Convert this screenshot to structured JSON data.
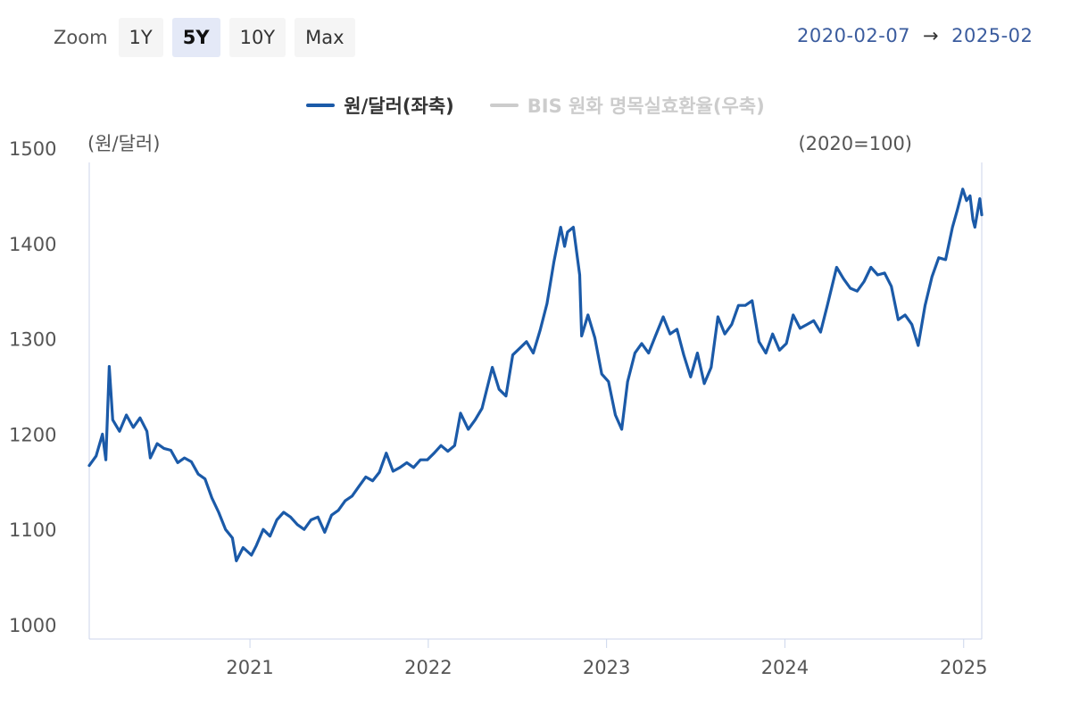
{
  "toolbar": {
    "zoom_label": "Zoom",
    "buttons": [
      "1Y",
      "5Y",
      "10Y",
      "Max"
    ],
    "active": "5Y"
  },
  "range": {
    "from": "2020-02-07",
    "arrow": "→",
    "to": "2025-02"
  },
  "colors": {
    "series": "#1b5aa8",
    "inactive": "#cccccc",
    "axis": "#ccd6eb",
    "grid": "#e6e6e6"
  },
  "chart_data": {
    "type": "line",
    "left_axis_unit": "(원/달러)",
    "right_axis_unit": "(2020=100)",
    "ylim": [
      1000,
      1500
    ],
    "y_ticks": [
      1000,
      1100,
      1200,
      1300,
      1400,
      1500
    ],
    "x_ticks": [
      "2021",
      "2022",
      "2023",
      "2024",
      "2025"
    ],
    "legend_position": "top-center",
    "series": [
      {
        "name": "원/달러(좌축)",
        "visible": true,
        "points": [
          [
            "2020-02-07",
            1182
          ],
          [
            "2020-02-21",
            1192
          ],
          [
            "2020-03-05",
            1215
          ],
          [
            "2020-03-12",
            1188
          ],
          [
            "2020-03-19",
            1286
          ],
          [
            "2020-03-26",
            1230
          ],
          [
            "2020-04-09",
            1218
          ],
          [
            "2020-04-23",
            1235
          ],
          [
            "2020-05-07",
            1222
          ],
          [
            "2020-05-21",
            1232
          ],
          [
            "2020-06-04",
            1218
          ],
          [
            "2020-06-11",
            1190
          ],
          [
            "2020-06-25",
            1205
          ],
          [
            "2020-07-09",
            1200
          ],
          [
            "2020-07-23",
            1198
          ],
          [
            "2020-08-06",
            1185
          ],
          [
            "2020-08-20",
            1190
          ],
          [
            "2020-09-03",
            1186
          ],
          [
            "2020-09-17",
            1173
          ],
          [
            "2020-10-01",
            1168
          ],
          [
            "2020-10-15",
            1148
          ],
          [
            "2020-10-29",
            1133
          ],
          [
            "2020-11-12",
            1115
          ],
          [
            "2020-11-26",
            1106
          ],
          [
            "2020-12-04",
            1082
          ],
          [
            "2020-12-18",
            1096
          ],
          [
            "2021-01-04",
            1088
          ],
          [
            "2021-01-14",
            1098
          ],
          [
            "2021-01-28",
            1115
          ],
          [
            "2021-02-11",
            1108
          ],
          [
            "2021-02-25",
            1125
          ],
          [
            "2021-03-11",
            1133
          ],
          [
            "2021-03-25",
            1128
          ],
          [
            "2021-04-08",
            1120
          ],
          [
            "2021-04-22",
            1115
          ],
          [
            "2021-05-06",
            1125
          ],
          [
            "2021-05-20",
            1128
          ],
          [
            "2021-06-03",
            1112
          ],
          [
            "2021-06-17",
            1130
          ],
          [
            "2021-07-01",
            1135
          ],
          [
            "2021-07-15",
            1145
          ],
          [
            "2021-07-29",
            1150
          ],
          [
            "2021-08-12",
            1160
          ],
          [
            "2021-08-26",
            1170
          ],
          [
            "2021-09-09",
            1166
          ],
          [
            "2021-09-23",
            1175
          ],
          [
            "2021-10-07",
            1195
          ],
          [
            "2021-10-21",
            1176
          ],
          [
            "2021-11-04",
            1180
          ],
          [
            "2021-11-18",
            1185
          ],
          [
            "2021-12-02",
            1180
          ],
          [
            "2021-12-16",
            1188
          ],
          [
            "2021-12-30",
            1188
          ],
          [
            "2022-01-13",
            1195
          ],
          [
            "2022-01-27",
            1203
          ],
          [
            "2022-02-10",
            1197
          ],
          [
            "2022-02-24",
            1203
          ],
          [
            "2022-03-08",
            1237
          ],
          [
            "2022-03-24",
            1220
          ],
          [
            "2022-04-07",
            1230
          ],
          [
            "2022-04-21",
            1242
          ],
          [
            "2022-05-12",
            1285
          ],
          [
            "2022-05-26",
            1262
          ],
          [
            "2022-06-09",
            1255
          ],
          [
            "2022-06-23",
            1298
          ],
          [
            "2022-07-07",
            1305
          ],
          [
            "2022-07-21",
            1312
          ],
          [
            "2022-08-04",
            1300
          ],
          [
            "2022-08-18",
            1324
          ],
          [
            "2022-09-01",
            1352
          ],
          [
            "2022-09-15",
            1395
          ],
          [
            "2022-09-29",
            1432
          ],
          [
            "2022-10-07",
            1412
          ],
          [
            "2022-10-13",
            1427
          ],
          [
            "2022-10-25",
            1432
          ],
          [
            "2022-11-07",
            1382
          ],
          [
            "2022-11-11",
            1318
          ],
          [
            "2022-11-24",
            1340
          ],
          [
            "2022-12-08",
            1316
          ],
          [
            "2022-12-22",
            1278
          ],
          [
            "2023-01-05",
            1270
          ],
          [
            "2023-01-19",
            1235
          ],
          [
            "2023-02-01",
            1220
          ],
          [
            "2023-02-13",
            1270
          ],
          [
            "2023-02-28",
            1300
          ],
          [
            "2023-03-14",
            1310
          ],
          [
            "2023-03-28",
            1300
          ],
          [
            "2023-04-11",
            1318
          ],
          [
            "2023-04-27",
            1338
          ],
          [
            "2023-05-11",
            1320
          ],
          [
            "2023-05-25",
            1325
          ],
          [
            "2023-06-08",
            1298
          ],
          [
            "2023-06-22",
            1275
          ],
          [
            "2023-07-06",
            1300
          ],
          [
            "2023-07-20",
            1268
          ],
          [
            "2023-08-03",
            1285
          ],
          [
            "2023-08-17",
            1338
          ],
          [
            "2023-08-31",
            1320
          ],
          [
            "2023-09-14",
            1330
          ],
          [
            "2023-09-28",
            1350
          ],
          [
            "2023-10-12",
            1350
          ],
          [
            "2023-10-26",
            1355
          ],
          [
            "2023-11-09",
            1312
          ],
          [
            "2023-11-23",
            1300
          ],
          [
            "2023-12-07",
            1320
          ],
          [
            "2023-12-21",
            1303
          ],
          [
            "2024-01-04",
            1310
          ],
          [
            "2024-01-18",
            1340
          ],
          [
            "2024-02-01",
            1326
          ],
          [
            "2024-02-15",
            1330
          ],
          [
            "2024-02-29",
            1334
          ],
          [
            "2024-03-14",
            1322
          ],
          [
            "2024-03-28",
            1350
          ],
          [
            "2024-04-16",
            1390
          ],
          [
            "2024-04-30",
            1378
          ],
          [
            "2024-05-14",
            1368
          ],
          [
            "2024-05-28",
            1365
          ],
          [
            "2024-06-11",
            1375
          ],
          [
            "2024-06-25",
            1390
          ],
          [
            "2024-07-09",
            1382
          ],
          [
            "2024-07-23",
            1384
          ],
          [
            "2024-08-06",
            1370
          ],
          [
            "2024-08-20",
            1335
          ],
          [
            "2024-09-03",
            1340
          ],
          [
            "2024-09-17",
            1330
          ],
          [
            "2024-09-30",
            1308
          ],
          [
            "2024-10-14",
            1350
          ],
          [
            "2024-10-28",
            1380
          ],
          [
            "2024-11-11",
            1400
          ],
          [
            "2024-11-25",
            1398
          ],
          [
            "2024-12-09",
            1432
          ],
          [
            "2024-12-19",
            1450
          ],
          [
            "2024-12-30",
            1472
          ],
          [
            "2025-01-07",
            1460
          ],
          [
            "2025-01-14",
            1465
          ],
          [
            "2025-01-20",
            1440
          ],
          [
            "2025-01-24",
            1432
          ],
          [
            "2025-02-03",
            1462
          ],
          [
            "2025-02-07",
            1445
          ]
        ]
      },
      {
        "name": "BIS 원화 명목실효환율(우축)",
        "visible": false
      }
    ]
  }
}
